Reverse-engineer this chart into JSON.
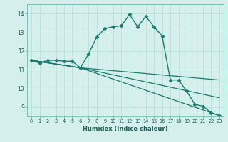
{
  "xlabel": "Humidex (Indice chaleur)",
  "bg_color": "#d4efec",
  "grid_color": "#b8ddd9",
  "line_color": "#1a7a6e",
  "xlim": [
    -0.5,
    23.5
  ],
  "ylim": [
    8.5,
    14.5
  ],
  "yticks": [
    9,
    10,
    11,
    12,
    13,
    14
  ],
  "xticks": [
    0,
    1,
    2,
    3,
    4,
    5,
    6,
    7,
    8,
    9,
    10,
    11,
    12,
    13,
    14,
    15,
    16,
    17,
    18,
    19,
    20,
    21,
    22,
    23
  ],
  "lines": [
    {
      "x": [
        0,
        1,
        2,
        3,
        4,
        5,
        6,
        7,
        8,
        9,
        10,
        11,
        12,
        13,
        14,
        15,
        16,
        17,
        18,
        19,
        20,
        21,
        22,
        23
      ],
      "y": [
        11.5,
        11.35,
        11.5,
        11.5,
        11.45,
        11.45,
        11.1,
        11.85,
        12.75,
        13.2,
        13.3,
        13.35,
        13.95,
        13.3,
        13.85,
        13.3,
        12.8,
        10.45,
        10.45,
        9.85,
        9.15,
        9.05,
        8.7,
        8.55
      ],
      "marker": "D",
      "markersize": 2.5,
      "linewidth": 1.0
    },
    {
      "x": [
        0,
        6,
        23
      ],
      "y": [
        11.5,
        11.1,
        10.45
      ],
      "marker": null,
      "markersize": 0,
      "linewidth": 0.9
    },
    {
      "x": [
        0,
        6,
        23
      ],
      "y": [
        11.5,
        11.1,
        9.5
      ],
      "marker": null,
      "markersize": 0,
      "linewidth": 0.9
    },
    {
      "x": [
        0,
        6,
        23
      ],
      "y": [
        11.5,
        11.1,
        8.55
      ],
      "marker": null,
      "markersize": 0,
      "linewidth": 0.9
    }
  ]
}
